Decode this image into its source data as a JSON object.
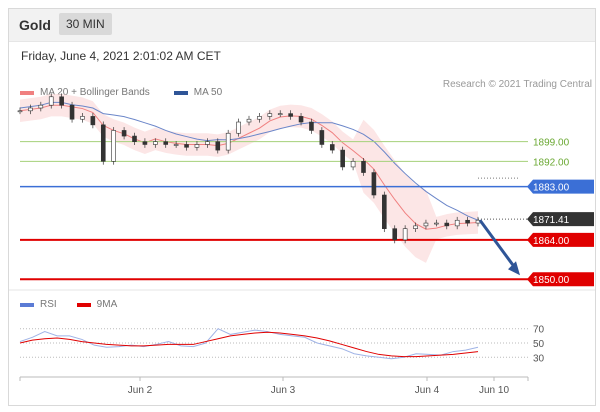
{
  "header": {
    "instrument": "Gold",
    "timeframe": "30 MIN"
  },
  "timestamp": "Friday, June 4, 2021 2:01:02 AM CET",
  "legend_main": [
    {
      "label": "MA 20 + Bollinger Bands",
      "color": "#f08080"
    },
    {
      "label": "MA 50",
      "color": "#2f5597"
    }
  ],
  "credit": "Research © 2021 Trading Central",
  "legend_rsi": [
    {
      "label": "RSI",
      "color": "#5b7bd5"
    },
    {
      "label": "9MA",
      "color": "#e00000"
    }
  ],
  "chart_data": {
    "type": "candlestick",
    "x_ticks": [
      "Jun 2",
      "Jun 3",
      "Jun 4",
      "Jun 10"
    ],
    "price_levels": [
      {
        "value": 1899.0,
        "label": "1899.00",
        "color": "#7cb342",
        "style": "thin"
      },
      {
        "value": 1892.0,
        "label": "1892.00",
        "color": "#7cb342",
        "style": "thin"
      },
      {
        "value": 1883.0,
        "label": "1883.00",
        "color": "#3b6fd6",
        "style": "box"
      },
      {
        "value": 1871.41,
        "label": "1871.41",
        "color": "#333333",
        "style": "box"
      },
      {
        "value": 1864.0,
        "label": "1864.00",
        "color": "#e00000",
        "style": "box"
      },
      {
        "value": 1850.0,
        "label": "1850.00",
        "color": "#e00000",
        "style": "box"
      }
    ],
    "price_range": [
      1849,
      1911
    ],
    "price_path": [
      1910,
      1911,
      1912,
      1915,
      1912,
      1907,
      1908,
      1905,
      1892,
      1903,
      1901,
      1899,
      1898,
      1899,
      1898,
      1898,
      1897,
      1898,
      1899,
      1896,
      1902,
      1906,
      1907,
      1908,
      1909,
      1909,
      1908,
      1906,
      1903,
      1898,
      1896,
      1890,
      1892,
      1888,
      1880,
      1868,
      1864,
      1868,
      1869,
      1870,
      1870,
      1869,
      1871,
      1870,
      1871
    ],
    "rsi_levels": [
      70,
      50,
      30
    ],
    "rsi_range": [
      15,
      85
    ],
    "rsi_values": [
      52,
      58,
      66,
      60,
      60,
      55,
      47,
      44,
      45,
      47,
      45,
      48,
      52,
      46,
      45,
      50,
      70,
      62,
      65,
      68,
      66,
      62,
      60,
      58,
      50,
      46,
      42,
      35,
      32,
      30,
      28,
      30,
      35,
      34,
      33,
      38,
      40,
      44
    ],
    "rsi_ma_values": [
      50,
      54,
      56,
      57,
      55,
      52,
      50,
      48,
      47,
      46,
      46,
      47,
      48,
      48,
      48,
      52,
      56,
      60,
      62,
      64,
      65,
      64,
      62,
      60,
      57,
      53,
      48,
      43,
      38,
      34,
      32,
      31,
      31,
      32,
      33,
      34,
      36,
      38
    ],
    "projection": {
      "from": 1871,
      "to": 1850
    }
  }
}
